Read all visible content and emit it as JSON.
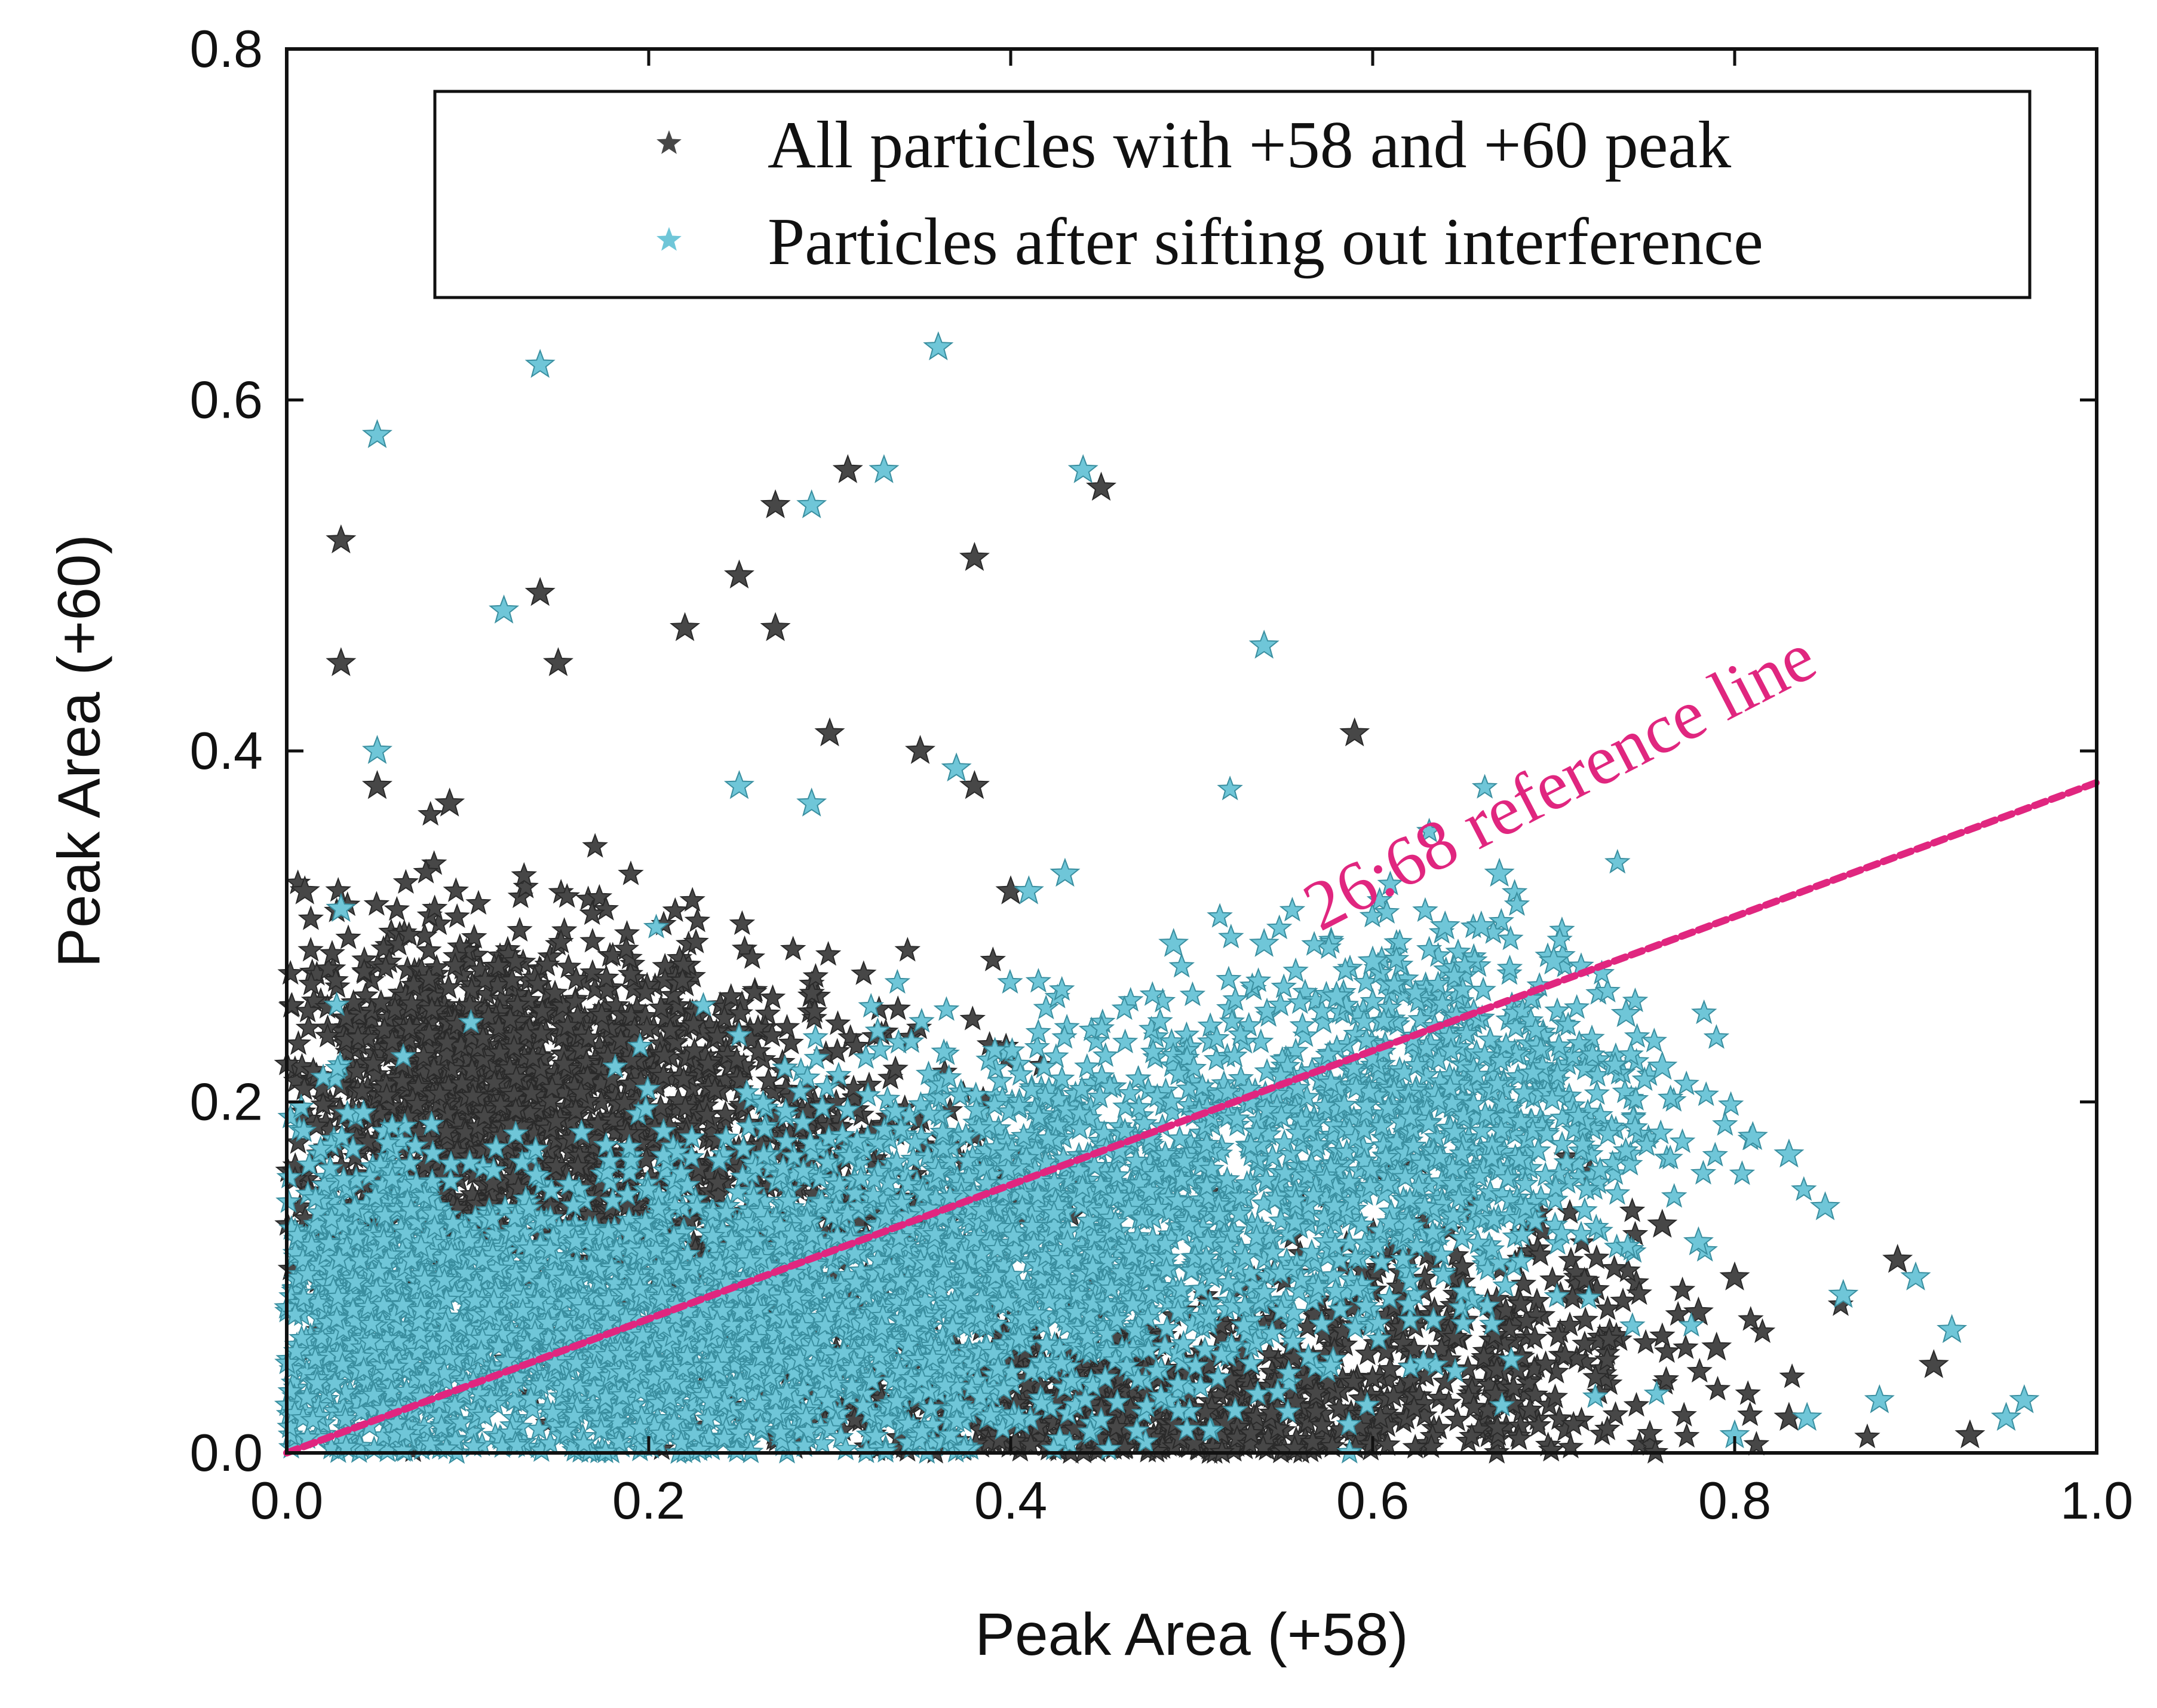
{
  "chart_data": {
    "type": "scatter",
    "xlabel": "Peak Area (+58)",
    "ylabel": "Peak Area (+60)",
    "xlim": [
      0.0,
      1.0
    ],
    "ylim": [
      0.0,
      0.8
    ],
    "xticks": [
      "0.0",
      "0.2",
      "0.4",
      "0.6",
      "0.8",
      "1.0"
    ],
    "yticks": [
      "0.0",
      "0.2",
      "0.4",
      "0.6",
      "0.8"
    ],
    "legend_position": "top-right",
    "marker": "star",
    "colors": {
      "all": "#474747",
      "sifted": "#6fc6d8",
      "reference": "#e0267f",
      "axis": "#111111"
    },
    "series": [
      {
        "name": "All particles with +58 and +60 peak",
        "color": "#474747",
        "clusters": [
          {
            "cx": 0.11,
            "cy": 0.2,
            "sx": 0.07,
            "sy": 0.05,
            "n": 1400
          },
          {
            "cx": 0.25,
            "cy": 0.16,
            "sx": 0.07,
            "sy": 0.06,
            "n": 600
          },
          {
            "cx": 0.45,
            "cy": 0.03,
            "sx": 0.09,
            "sy": 0.025,
            "n": 700
          },
          {
            "cx": 0.65,
            "cy": 0.06,
            "sx": 0.07,
            "sy": 0.04,
            "n": 350
          }
        ],
        "points": [
          [
            0.03,
            0.52
          ],
          [
            0.03,
            0.45
          ],
          [
            0.14,
            0.49
          ],
          [
            0.15,
            0.45
          ],
          [
            0.22,
            0.47
          ],
          [
            0.25,
            0.5
          ],
          [
            0.27,
            0.54
          ],
          [
            0.27,
            0.47
          ],
          [
            0.31,
            0.56
          ],
          [
            0.38,
            0.51
          ],
          [
            0.45,
            0.55
          ],
          [
            0.59,
            0.41
          ],
          [
            0.05,
            0.38
          ],
          [
            0.09,
            0.37
          ],
          [
            0.3,
            0.41
          ],
          [
            0.35,
            0.4
          ],
          [
            0.38,
            0.38
          ],
          [
            0.4,
            0.32
          ],
          [
            0.01,
            0.32
          ],
          [
            0.89,
            0.11
          ],
          [
            0.91,
            0.05
          ],
          [
            0.93,
            0.01
          ],
          [
            0.78,
            0.08
          ],
          [
            0.8,
            0.1
          ],
          [
            0.76,
            0.13
          ],
          [
            0.72,
            0.16
          ],
          [
            0.83,
            0.02
          ],
          [
            0.79,
            0.06
          ]
        ]
      },
      {
        "name": "Particles after sifting out interference",
        "color": "#6fc6d8",
        "clusters": [
          {
            "cx": 0.2,
            "cy": 0.07,
            "sx": 0.13,
            "sy": 0.04,
            "n": 2600
          },
          {
            "cx": 0.44,
            "cy": 0.14,
            "sx": 0.1,
            "sy": 0.05,
            "n": 1400
          },
          {
            "cx": 0.64,
            "cy": 0.2,
            "sx": 0.06,
            "sy": 0.05,
            "n": 700
          },
          {
            "cx": 0.04,
            "cy": 0.09,
            "sx": 0.03,
            "sy": 0.05,
            "n": 500
          }
        ],
        "points": [
          [
            0.36,
            0.63
          ],
          [
            0.14,
            0.62
          ],
          [
            0.05,
            0.58
          ],
          [
            0.33,
            0.56
          ],
          [
            0.29,
            0.54
          ],
          [
            0.44,
            0.56
          ],
          [
            0.12,
            0.48
          ],
          [
            0.54,
            0.46
          ],
          [
            0.05,
            0.4
          ],
          [
            0.37,
            0.39
          ],
          [
            0.03,
            0.31
          ],
          [
            0.25,
            0.38
          ],
          [
            0.29,
            0.37
          ],
          [
            0.41,
            0.32
          ],
          [
            0.43,
            0.33
          ],
          [
            0.49,
            0.29
          ],
          [
            0.54,
            0.29
          ],
          [
            0.67,
            0.33
          ],
          [
            0.85,
            0.14
          ],
          [
            0.86,
            0.09
          ],
          [
            0.9,
            0.1
          ],
          [
            0.92,
            0.07
          ],
          [
            0.96,
            0.03
          ],
          [
            0.95,
            0.02
          ],
          [
            0.88,
            0.03
          ],
          [
            0.84,
            0.02
          ],
          [
            0.8,
            0.01
          ],
          [
            0.78,
            0.12
          ],
          [
            0.81,
            0.18
          ],
          [
            0.83,
            0.17
          ],
          [
            0.76,
            0.22
          ],
          [
            0.74,
            0.25
          ],
          [
            0.7,
            0.28
          ],
          [
            0.64,
            0.3
          ],
          [
            0.66,
            0.3
          ],
          [
            0.6,
            0.28
          ],
          [
            0.58,
            0.26
          ]
        ]
      }
    ],
    "reference_line": {
      "label": "26:68 reference line",
      "x": [
        0.0,
        1.0
      ],
      "y": [
        0.0,
        0.382
      ]
    }
  }
}
